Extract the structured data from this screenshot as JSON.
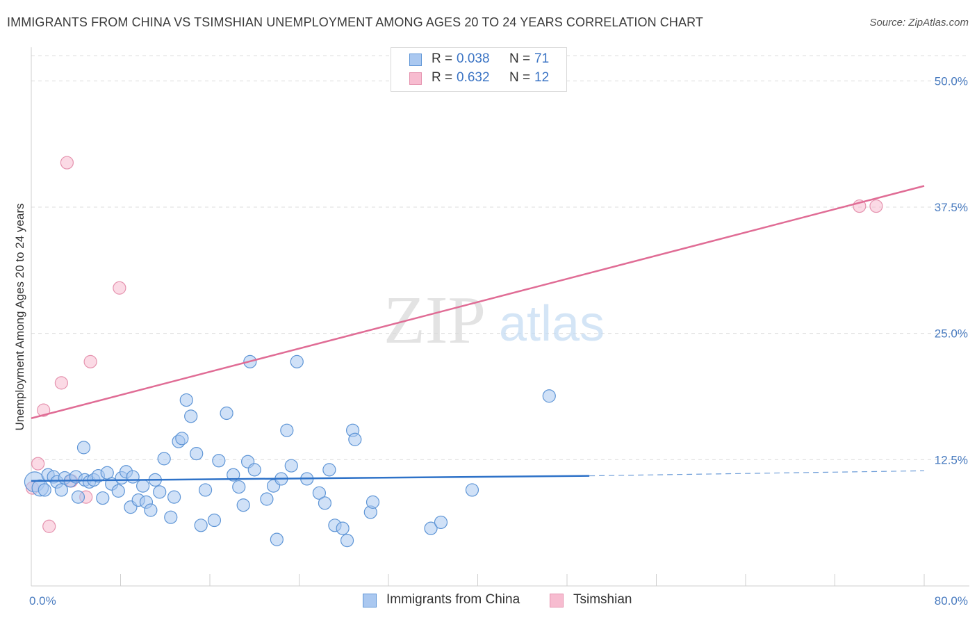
{
  "title": "IMMIGRANTS FROM CHINA VS TSIMSHIAN UNEMPLOYMENT AMONG AGES 20 TO 24 YEARS CORRELATION CHART",
  "source": "Source: ZipAtlas.com",
  "watermark": {
    "zip": "ZIP",
    "atlas": "atlas"
  },
  "legend": {
    "rows": [
      {
        "r_label": "R =",
        "r_value": "0.038",
        "n_label": "N =",
        "n_value": "71"
      },
      {
        "r_label": "R =",
        "r_value": "0.632",
        "n_label": "N =",
        "n_value": "12"
      }
    ]
  },
  "colors": {
    "china_fill": "#aac8f0",
    "china_stroke": "#5e95d6",
    "china_line": "#2e72c8",
    "tsim_fill": "#f7bcd0",
    "tsim_stroke": "#e592ae",
    "tsim_line": "#e06c95",
    "grid": "#dcdcdc",
    "tick_text": "#4a7cc0"
  },
  "chart_data": {
    "type": "scatter",
    "title": "IMMIGRANTS FROM CHINA VS TSIMSHIAN UNEMPLOYMENT AMONG AGES 20 TO 24 YEARS CORRELATION CHART",
    "xlabel": "",
    "ylabel": "Unemployment Among Ages 20 to 24 years",
    "xlim": [
      0,
      80
    ],
    "ylim": [
      0,
      52.5
    ],
    "x_tick_labels": [
      {
        "value": 0,
        "label": "0.0%"
      },
      {
        "value": 80,
        "label": "80.0%"
      }
    ],
    "y_tick_labels": [
      {
        "value": 12.5,
        "label": "12.5%"
      },
      {
        "value": 25,
        "label": "25.0%"
      },
      {
        "value": 37.5,
        "label": "37.5%"
      },
      {
        "value": 50,
        "label": "50.0%"
      }
    ],
    "x_minor_ticks": [
      8,
      16,
      24,
      32,
      40,
      48,
      56,
      64,
      72,
      80
    ],
    "series": [
      {
        "name": "Immigrants from China",
        "r": 0.038,
        "n": 71,
        "trend": {
          "x_start": 0,
          "y_start": 10.4,
          "x_solid_end": 50,
          "y_solid_end": 10.9,
          "x_dash_end": 80,
          "y_dash_end": 11.4
        },
        "points": [
          [
            0.3,
            10.3,
            1.6
          ],
          [
            0.8,
            9.7,
            1.3
          ],
          [
            1.2,
            9.5,
            1
          ],
          [
            1.5,
            11,
            1
          ],
          [
            2,
            10.8,
            1
          ],
          [
            2.3,
            10.3,
            1
          ],
          [
            2.7,
            9.5,
            1
          ],
          [
            3,
            10.7,
            1
          ],
          [
            3.5,
            10.4,
            1
          ],
          [
            4,
            10.8,
            1
          ],
          [
            4.2,
            8.8,
            1
          ],
          [
            4.7,
            13.7,
            1
          ],
          [
            4.8,
            10.5,
            1
          ],
          [
            5.2,
            10.3,
            1
          ],
          [
            5.6,
            10.5,
            1
          ],
          [
            6,
            10.9,
            1
          ],
          [
            6.4,
            8.7,
            1
          ],
          [
            6.8,
            11.2,
            1
          ],
          [
            7.2,
            10.1,
            1
          ],
          [
            7.8,
            9.4,
            1
          ],
          [
            8.1,
            10.7,
            1
          ],
          [
            8.5,
            11.3,
            1
          ],
          [
            8.9,
            7.8,
            1
          ],
          [
            9.1,
            10.8,
            1
          ],
          [
            9.6,
            8.5,
            1
          ],
          [
            10,
            9.9,
            1
          ],
          [
            10.3,
            8.3,
            1
          ],
          [
            10.7,
            7.5,
            1
          ],
          [
            11.1,
            10.5,
            1
          ],
          [
            11.5,
            9.3,
            1
          ],
          [
            11.9,
            12.6,
            1
          ],
          [
            12.5,
            6.8,
            1
          ],
          [
            12.8,
            8.8,
            1
          ],
          [
            13.2,
            14.3,
            1
          ],
          [
            13.5,
            14.6,
            1
          ],
          [
            13.9,
            18.4,
            1
          ],
          [
            14.3,
            16.8,
            1
          ],
          [
            14.8,
            13.1,
            1
          ],
          [
            15.2,
            6,
            1
          ],
          [
            15.6,
            9.5,
            1
          ],
          [
            16.4,
            6.5,
            1
          ],
          [
            16.8,
            12.4,
            1
          ],
          [
            17.5,
            17.1,
            1
          ],
          [
            18.1,
            11,
            1
          ],
          [
            18.6,
            9.8,
            1
          ],
          [
            19,
            8,
            1
          ],
          [
            19.4,
            12.3,
            1
          ],
          [
            19.6,
            22.2,
            1
          ],
          [
            20,
            11.5,
            1
          ],
          [
            21.1,
            8.6,
            1
          ],
          [
            21.7,
            9.9,
            1
          ],
          [
            22,
            4.6,
            1
          ],
          [
            22.4,
            10.6,
            1
          ],
          [
            22.9,
            15.4,
            1
          ],
          [
            23.3,
            11.9,
            1
          ],
          [
            23.8,
            22.2,
            1
          ],
          [
            24.7,
            10.6,
            1
          ],
          [
            25.8,
            9.2,
            1
          ],
          [
            26.3,
            8.2,
            1
          ],
          [
            26.7,
            11.5,
            1
          ],
          [
            27.2,
            6,
            1
          ],
          [
            27.9,
            5.7,
            1
          ],
          [
            28.3,
            4.5,
            1
          ],
          [
            28.8,
            15.4,
            1
          ],
          [
            29,
            14.5,
            1
          ],
          [
            30.4,
            7.3,
            1
          ],
          [
            30.6,
            8.3,
            1
          ],
          [
            35.8,
            5.7,
            1
          ],
          [
            36.7,
            6.3,
            1
          ],
          [
            39.5,
            9.5,
            1
          ],
          [
            46.4,
            18.8,
            1
          ]
        ]
      },
      {
        "name": "Tsimshian",
        "r": 0.632,
        "n": 12,
        "trend": {
          "x_start": 0,
          "y_start": 16.6,
          "x_end": 80,
          "y_end": 39.6
        },
        "points": [
          [
            0.1,
            9.7,
            1
          ],
          [
            0.6,
            12.1,
            1
          ],
          [
            1.1,
            17.4,
            1
          ],
          [
            1.6,
            5.9,
            1
          ],
          [
            2.7,
            20.1,
            1
          ],
          [
            3.2,
            41.9,
            1
          ],
          [
            3.6,
            10.4,
            1
          ],
          [
            4.9,
            8.8,
            1
          ],
          [
            5.3,
            22.2,
            1
          ],
          [
            7.9,
            29.5,
            1
          ],
          [
            74.2,
            37.6,
            1
          ],
          [
            75.7,
            37.6,
            1
          ]
        ]
      }
    ],
    "legend_position": "top-center",
    "grid": true
  },
  "bottom_legend": [
    {
      "label": "Immigrants from China"
    },
    {
      "label": "Tsimshian"
    }
  ]
}
